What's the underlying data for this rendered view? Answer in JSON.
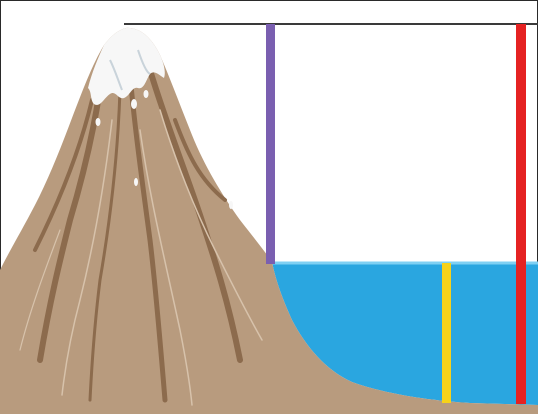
{
  "diagram": {
    "colors": {
      "background": "#ffffff",
      "frame": "#2a2a2a",
      "reference_line": "#3a3a3a",
      "mountain": "#b89b7e",
      "mountain_dark": "#8c6b4d",
      "mountain_light": "#d7c2ab",
      "snow": "#f7f7f7",
      "snow_shadow": "#c9d3da",
      "ocean": "#2aa6e0",
      "ocean_surface": "#7fd0f3",
      "ocean_floor": "#9c8067",
      "bar_purple": "#7a5fb0",
      "bar_yellow": "#f6d21a",
      "bar_red": "#e52222"
    },
    "elements": [
      "mountain",
      "snow-cap",
      "ocean",
      "sea-level-line",
      "purple-bar",
      "yellow-bar",
      "red-bar",
      "top-reference-line"
    ]
  }
}
